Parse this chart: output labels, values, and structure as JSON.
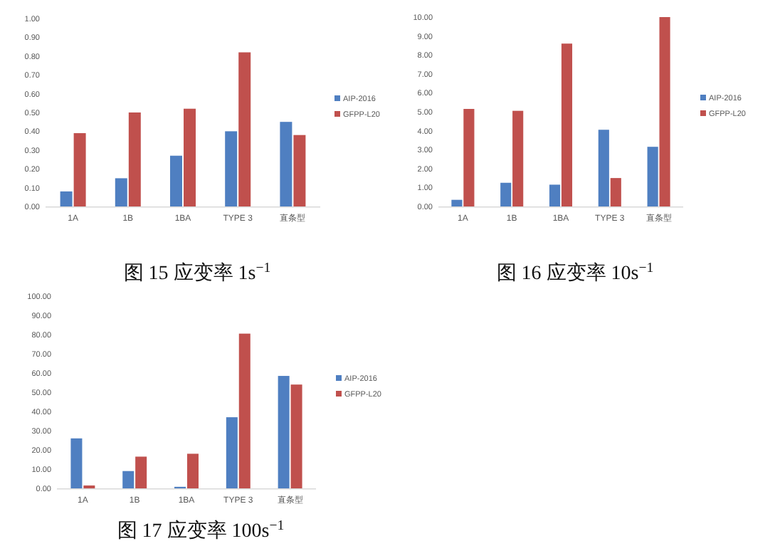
{
  "chart_data": [
    {
      "type": "bar",
      "title": "图 15  应变率 1s$^{−1}$",
      "categories": [
        "1A",
        "1B",
        "1BA",
        "TYPE 3",
        "直条型"
      ],
      "legend": "right",
      "grid": false,
      "ylim": [
        0,
        1
      ],
      "yticks": [
        {
          "value": 0,
          "label": "0.00"
        },
        {
          "value": 0.1,
          "label": "0.10"
        },
        {
          "value": 0.2,
          "label": "0.20"
        },
        {
          "value": 0.3,
          "label": "0.30"
        },
        {
          "value": 0.4,
          "label": "0.40"
        },
        {
          "value": 0.5,
          "label": "0.50"
        },
        {
          "value": 0.6,
          "label": "0.60"
        },
        {
          "value": 0.7,
          "label": "0.70"
        },
        {
          "value": 0.8,
          "label": "0.80"
        },
        {
          "value": 0.9,
          "label": "0.90"
        },
        {
          "value": 1,
          "label": "1.00"
        }
      ],
      "series": [
        {
          "name": "AIP-2016",
          "color": "#4f7fc1",
          "values": [
            0.08,
            0.15,
            0.27,
            0.4,
            0.45
          ]
        },
        {
          "name": "GFPP-L20",
          "color": "#c0504d",
          "values": [
            0.39,
            0.5,
            0.52,
            0.82,
            0.38
          ]
        }
      ]
    },
    {
      "type": "bar",
      "title": "图 16  应变率 10s$^{−1}$",
      "categories": [
        "1A",
        "1B",
        "1BA",
        "TYPE 3",
        "直条型"
      ],
      "legend": "right",
      "grid": false,
      "ylim": [
        0,
        10
      ],
      "yticks": [
        {
          "value": 0,
          "label": "0.00"
        },
        {
          "value": 1,
          "label": "1.00"
        },
        {
          "value": 2,
          "label": "2.00"
        },
        {
          "value": 3,
          "label": "3.00"
        },
        {
          "value": 4,
          "label": "4.00"
        },
        {
          "value": 5,
          "label": "5.00"
        },
        {
          "value": 6,
          "label": "6.00"
        },
        {
          "value": 7,
          "label": "7.00"
        },
        {
          "value": 8,
          "label": "8.00"
        },
        {
          "value": 9,
          "label": "9.00"
        },
        {
          "value": 10,
          "label": "10.00"
        }
      ],
      "series": [
        {
          "name": "AIP-2016",
          "color": "#4f7fc1",
          "values": [
            0.35,
            1.25,
            1.15,
            4.05,
            3.15
          ]
        },
        {
          "name": "GFPP-L20",
          "color": "#c0504d",
          "values": [
            5.15,
            5.05,
            8.6,
            1.5,
            10.0
          ]
        }
      ]
    },
    {
      "type": "bar",
      "title": "图 17  应变率 100s$^{−1}$",
      "categories": [
        "1A",
        "1B",
        "1BA",
        "TYPE 3",
        "直条型"
      ],
      "legend": "right",
      "grid": false,
      "ylim": [
        0,
        100
      ],
      "yticks": [
        {
          "value": 0,
          "label": "0.00"
        },
        {
          "value": 10,
          "label": "10.00"
        },
        {
          "value": 20,
          "label": "20.00"
        },
        {
          "value": 30,
          "label": "30.00"
        },
        {
          "value": 40,
          "label": "40.00"
        },
        {
          "value": 50,
          "label": "50.00"
        },
        {
          "value": 60,
          "label": "60.00"
        },
        {
          "value": 70,
          "label": "70.00"
        },
        {
          "value": 80,
          "label": "80.00"
        },
        {
          "value": 90,
          "label": "90.00"
        },
        {
          "value": 100,
          "label": "100.00"
        }
      ],
      "series": [
        {
          "name": "AIP-2016",
          "color": "#4f7fc1",
          "values": [
            26,
            9,
            0.8,
            37,
            58.5
          ]
        },
        {
          "name": "GFPP-L20",
          "color": "#c0504d",
          "values": [
            1.5,
            16.5,
            18,
            80.5,
            54
          ]
        }
      ]
    }
  ]
}
